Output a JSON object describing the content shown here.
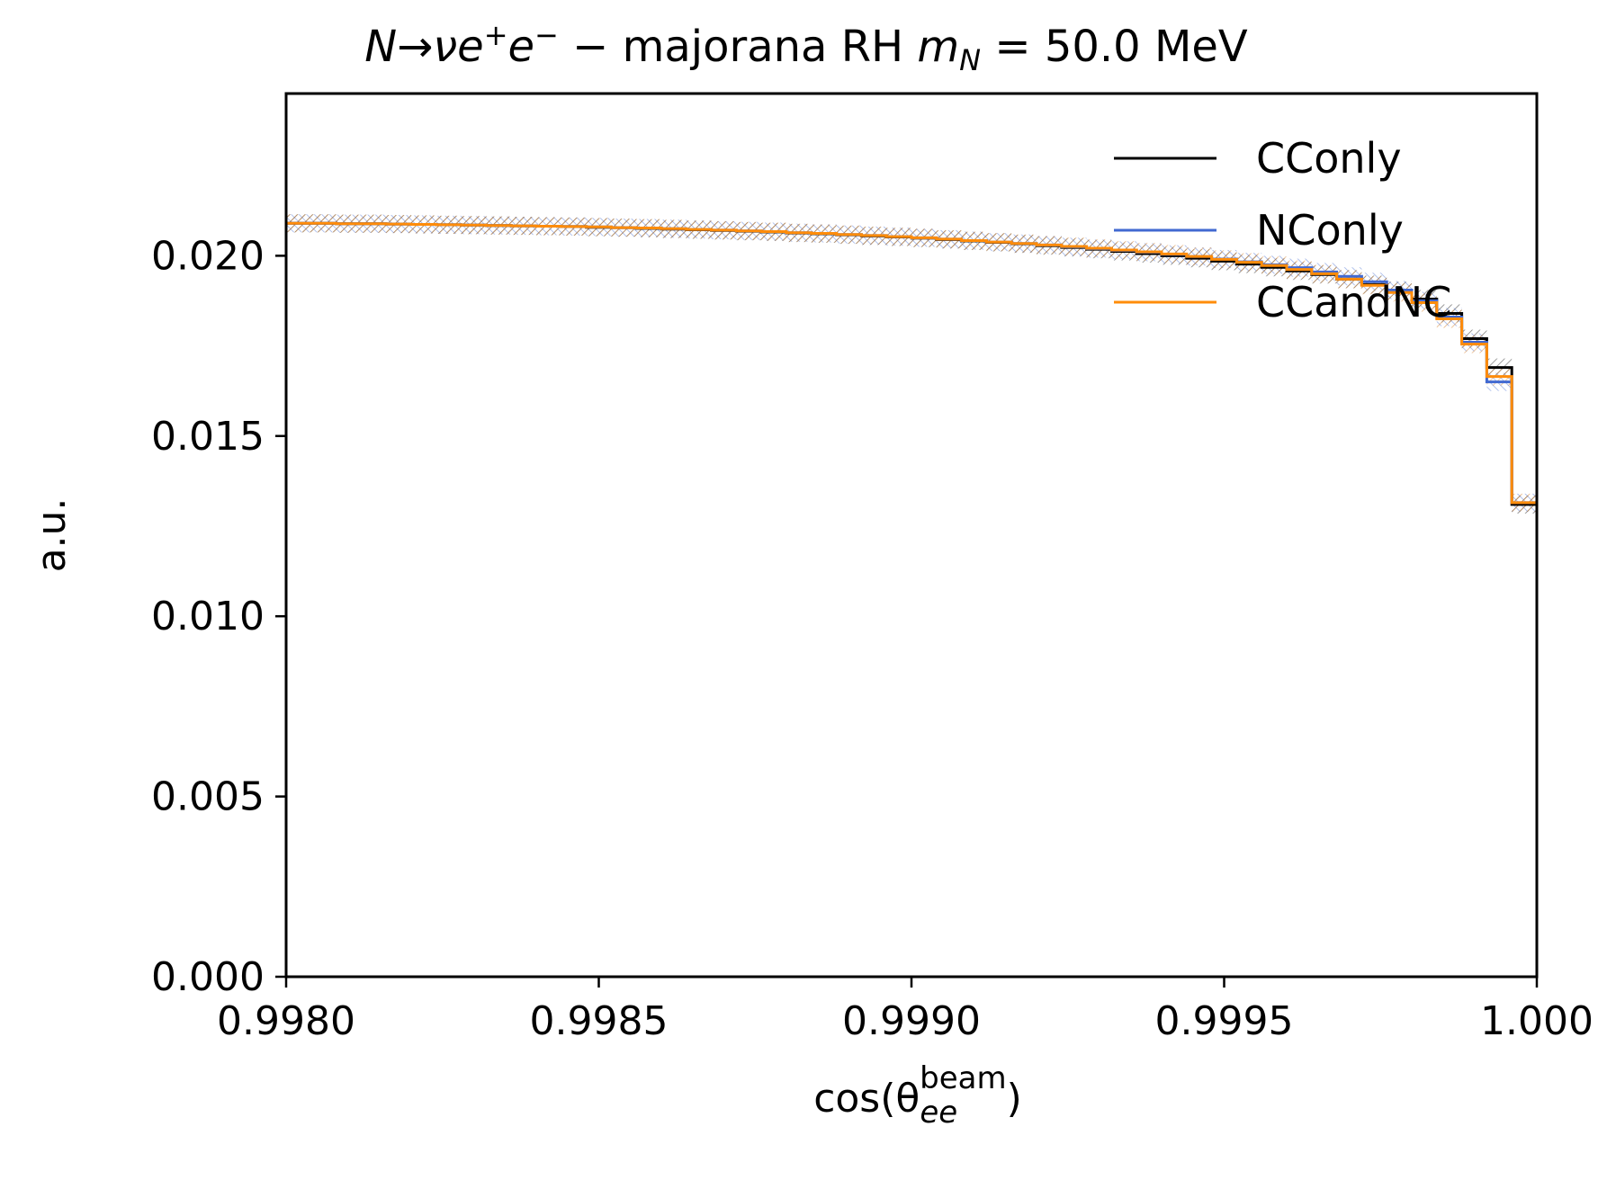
{
  "chart_data": {
    "type": "line",
    "title": {
      "main": "N→νe",
      "plus": "+",
      "e": "e",
      "minus": "−",
      "dash": " − majorana RH ",
      "m": "m",
      "sub": "N",
      "rest": " = 50.0 MeV"
    },
    "xlabel": {
      "pre": "cos(θ",
      "sub": "ee",
      "sup": "beam",
      "post": ")"
    },
    "ylabel": "a.u.",
    "xlim": [
      0.998,
      1.0
    ],
    "ylim": [
      0.0,
      0.0245
    ],
    "xticks": [
      0.998,
      0.9985,
      0.999,
      0.9995,
      1.0
    ],
    "xtick_labels": [
      "0.9980",
      "0.9985",
      "0.9990",
      "0.9995",
      "1.000"
    ],
    "yticks": [
      0.0,
      0.005,
      0.01,
      0.015,
      0.02
    ],
    "ytick_labels": [
      "0.000",
      "0.005",
      "0.010",
      "0.015",
      "0.020"
    ],
    "grid": false,
    "legend_position": "top-right",
    "bin_edges": [
      0.998,
      0.99804,
      0.99808,
      0.99812,
      0.99816,
      0.9982,
      0.99824,
      0.99828,
      0.99832,
      0.99836,
      0.9984,
      0.99844,
      0.99848,
      0.99852,
      0.99856,
      0.9986,
      0.99864,
      0.99868,
      0.99872,
      0.99876,
      0.9988,
      0.99884,
      0.99888,
      0.99892,
      0.99896,
      0.999,
      0.99904,
      0.99908,
      0.99912,
      0.99916,
      0.9992,
      0.99924,
      0.99928,
      0.99932,
      0.99936,
      0.9994,
      0.99944,
      0.99948,
      0.99952,
      0.99956,
      0.9996,
      0.99964,
      0.99968,
      0.99972,
      0.99976,
      0.9998,
      0.99984,
      0.99988,
      0.99992,
      0.99996,
      1.0
    ],
    "series": [
      {
        "name": "CConly",
        "color": "#000000",
        "values": [
          0.0209,
          0.0209,
          0.02089,
          0.02089,
          0.02088,
          0.02087,
          0.02086,
          0.02085,
          0.02084,
          0.02083,
          0.02082,
          0.02081,
          0.02079,
          0.02078,
          0.02076,
          0.02074,
          0.02072,
          0.0207,
          0.02068,
          0.02066,
          0.02063,
          0.02061,
          0.02058,
          0.02055,
          0.02052,
          0.02049,
          0.02045,
          0.02041,
          0.02037,
          0.02033,
          0.02028,
          0.02023,
          0.02018,
          0.02012,
          0.02006,
          0.02,
          0.01993,
          0.01985,
          0.01977,
          0.01968,
          0.01958,
          0.01948,
          0.01935,
          0.0192,
          0.01903,
          0.0188,
          0.0184,
          0.0177,
          0.0169,
          0.0131
        ],
        "err": [
          0.00025,
          0.00025,
          0.00025,
          0.00025,
          0.00025,
          0.00025,
          0.00025,
          0.00025,
          0.00025,
          0.00025,
          0.00025,
          0.00025,
          0.00025,
          0.00025,
          0.00025,
          0.00025,
          0.00025,
          0.00025,
          0.00025,
          0.00025,
          0.00025,
          0.00025,
          0.00025,
          0.00025,
          0.00025,
          0.00025,
          0.00025,
          0.00025,
          0.00025,
          0.00025,
          0.00025,
          0.00025,
          0.00025,
          0.00025,
          0.00025,
          0.00025,
          0.00025,
          0.00025,
          0.00025,
          0.00025,
          0.00025,
          0.00025,
          0.00025,
          0.00025,
          0.00025,
          0.00025,
          0.00025,
          0.00025,
          0.00025,
          0.00025
        ]
      },
      {
        "name": "NConly",
        "color": "#4169d1",
        "values": [
          0.0209,
          0.0209,
          0.02089,
          0.02089,
          0.02088,
          0.02087,
          0.02086,
          0.02085,
          0.02084,
          0.02083,
          0.02082,
          0.02081,
          0.0208,
          0.02078,
          0.02077,
          0.02075,
          0.02073,
          0.02071,
          0.02069,
          0.02067,
          0.02064,
          0.02062,
          0.02059,
          0.02056,
          0.02053,
          0.0205,
          0.02046,
          0.02042,
          0.02038,
          0.02034,
          0.0203,
          0.02025,
          0.0202,
          0.02015,
          0.0201,
          0.02004,
          0.01998,
          0.01991,
          0.01983,
          0.01975,
          0.01967,
          0.01955,
          0.01943,
          0.01928,
          0.01905,
          0.01875,
          0.0183,
          0.0176,
          0.0165,
          0.01315
        ],
        "err": [
          0.00025,
          0.00025,
          0.00025,
          0.00025,
          0.00025,
          0.00025,
          0.00025,
          0.00025,
          0.00025,
          0.00025,
          0.00025,
          0.00025,
          0.00025,
          0.00025,
          0.00025,
          0.00025,
          0.00025,
          0.00025,
          0.00025,
          0.00025,
          0.00025,
          0.00025,
          0.00025,
          0.00025,
          0.00025,
          0.00025,
          0.00025,
          0.00025,
          0.00025,
          0.00025,
          0.00025,
          0.00025,
          0.00025,
          0.00025,
          0.00025,
          0.00025,
          0.00025,
          0.00025,
          0.00025,
          0.00025,
          0.00025,
          0.00025,
          0.00025,
          0.00025,
          0.00025,
          0.00025,
          0.00025,
          0.00025,
          0.00025,
          0.00025
        ]
      },
      {
        "name": "CCandNC",
        "color": "#ff8c0a",
        "values": [
          0.0209,
          0.0209,
          0.02089,
          0.02089,
          0.02088,
          0.02087,
          0.02086,
          0.02085,
          0.02084,
          0.02083,
          0.02082,
          0.02081,
          0.0208,
          0.02078,
          0.02077,
          0.02075,
          0.02073,
          0.02071,
          0.02069,
          0.02067,
          0.02064,
          0.02062,
          0.02059,
          0.02056,
          0.02053,
          0.0205,
          0.02046,
          0.02042,
          0.02038,
          0.02034,
          0.0203,
          0.02026,
          0.02021,
          0.02016,
          0.02011,
          0.02005,
          0.01998,
          0.0199,
          0.01982,
          0.01973,
          0.01962,
          0.0195,
          0.01935,
          0.01918,
          0.01898,
          0.0187,
          0.01825,
          0.01755,
          0.01665,
          0.01315
        ],
        "err": [
          0.00025,
          0.00025,
          0.00025,
          0.00025,
          0.00025,
          0.00025,
          0.00025,
          0.00025,
          0.00025,
          0.00025,
          0.00025,
          0.00025,
          0.00025,
          0.00025,
          0.00025,
          0.00025,
          0.00025,
          0.00025,
          0.00025,
          0.00025,
          0.00025,
          0.00025,
          0.00025,
          0.00025,
          0.00025,
          0.00025,
          0.00025,
          0.00025,
          0.00025,
          0.00025,
          0.00025,
          0.00025,
          0.00025,
          0.00025,
          0.00025,
          0.00025,
          0.00025,
          0.00025,
          0.00025,
          0.00025,
          0.00025,
          0.00025,
          0.00025,
          0.00025,
          0.00025,
          0.00025,
          0.00025,
          0.00025,
          0.00025,
          0.00025
        ]
      }
    ]
  }
}
